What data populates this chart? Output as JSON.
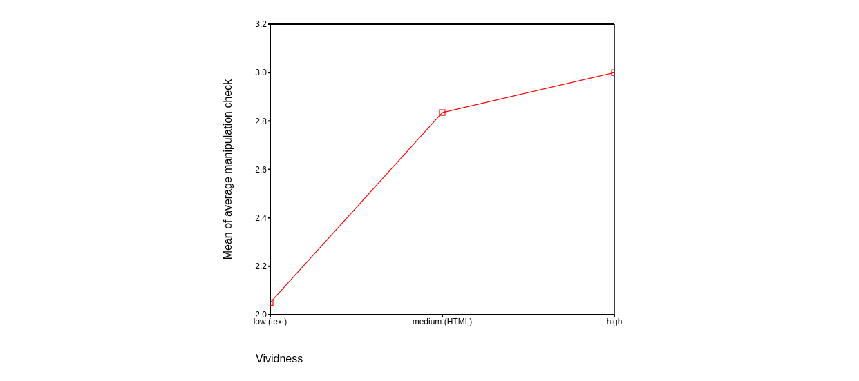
{
  "chart_data": {
    "type": "line",
    "xlabel": "Vividness",
    "ylabel": "Mean of average manipulation check",
    "categories": [
      "low  (text)",
      "medium (HTML)",
      "high"
    ],
    "series": [
      {
        "color": "#ff0000",
        "values": [
          2.05,
          2.835,
          3.0
        ]
      }
    ],
    "ylim": [
      2.0,
      3.2
    ],
    "yticks": [
      {
        "value": 2.0,
        "label": "2.0"
      },
      2.2,
      2.4,
      2.6,
      2.8,
      {
        "value": 3.0,
        "label": "3.0"
      },
      3.2
    ],
    "grid": false,
    "marker": "square",
    "line_style": "solid"
  }
}
